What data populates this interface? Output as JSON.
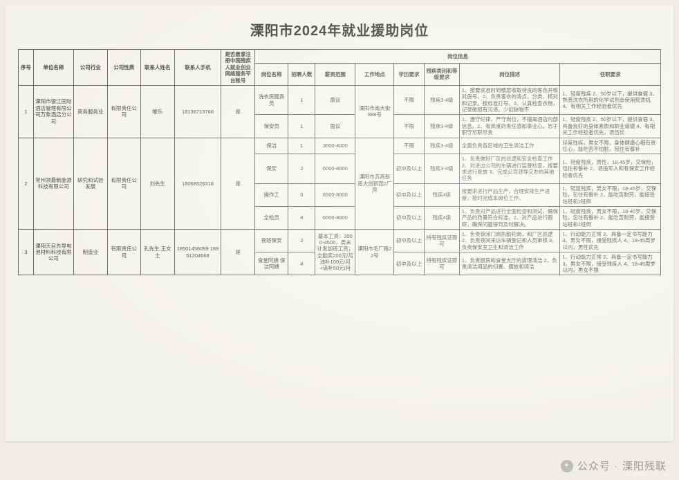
{
  "title": "溧阳市2024年就业援助岗位",
  "watermark": {
    "prefix": "公众号 · ",
    "name": "溧阳残联"
  },
  "colors": {
    "page_bg": "#faf8f3",
    "border": "#555555",
    "text": "#333333"
  },
  "fonts": {
    "title_pt": 20,
    "body_pt": 7.5
  },
  "header": {
    "seq": "序号",
    "company": "单位名称",
    "industry": "公司行业",
    "nature": "公司性质",
    "contact": "联系人姓名",
    "phone": "联系人手机",
    "registered": "是否愿意注册中国残疾人就业创业网络服务平台账号",
    "job_info": "岗位信息",
    "sub": {
      "job_name": "岗位名称",
      "count": "招聘人数",
      "salary": "薪资范围",
      "location": "工作地点",
      "edu": "学历要求",
      "disab": "残疾类别和等级要求",
      "desc": "岗位描述",
      "req": "任职要求"
    }
  },
  "rows": [
    {
      "seq": "1",
      "company": "溧阳市银江国际酒店管理有限公司万象酒店分公司",
      "industry": "商务服务业",
      "nature": "有限责任公司",
      "contact": "喻乐",
      "phone": "18136713766",
      "registered": "是",
      "location": "溧阳市南大街 888号",
      "jobs": [
        {
          "name": "洗衣房服务员",
          "count": "1",
          "salary": "面议",
          "edu": "不限",
          "disab": "残疾3-4级",
          "desc": "1、按要求准时到楼层收取待洗的客衣并核对房号。2、负责客衣的清点、分类、核对和记录。按标准打号。3、认真检查衣物，记录破损有污渍。少扣缺物不",
          "req": "1、轻度残疾  2、50岁以下，提供食宿  3、熟悉洗衣所用的化学试剂会使用熨烫机  4、有相关工作经验者优先"
        },
        {
          "name": "保安员",
          "count": "1",
          "salary": "面议",
          "edu": "不限",
          "disab": "残疾3-4级",
          "desc": "1、遵守纪律，严守岗位，不擅离酒店内部信息。2、有高度的责任感和事业心。忠于职守尽职尽责",
          "req": "1、轻度残疾  2、50岁以下，提供食宿  3、具备良好的身体素质和职业道德  4、有相关工作经验者优先，退伍优"
        }
      ]
    },
    {
      "seq": "2",
      "company": "常州领最新能源科技有限公司",
      "industry": "研究和试验发展",
      "nature": "有限责任公司",
      "contact": "刘先生",
      "phone": "18068526318",
      "registered": "是",
      "location": "溧阳市苏高新南大创新园2厂房",
      "jobs": [
        {
          "name": "保洁",
          "count": "1",
          "salary": "3000-4000",
          "edu": "不限",
          "disab": "残疾3-4级",
          "desc": "全面负责各区域的卫生清洁工作",
          "req": "轻度残疾，男女不限，身体健康心细有责任心，能吃苦不怕脏，包住有餐补"
        },
        {
          "name": "保安",
          "count": "2",
          "salary": "6000-8000",
          "edu": "初中及以上",
          "disab": "残疾3-4级",
          "desc": "1、负责做好厂区的巡逻和安全检查工作  2、对进出公司的车辆进行监督检查，按要求进行登放  3、完成公司领导交办的其他任务",
          "req": "1、轻度残疾，男性，18-45岁，交保险，包住有餐补  2、退役军人和有保安工作经验者优先"
        },
        {
          "name": "操作工",
          "count": "3",
          "salary": "6500-8000",
          "edu": "初中及以上",
          "disab": "残疾4级",
          "desc": "按要求进行产品生产，合理安排生产进度，按时完成本岗位工作。",
          "req": "1、轻度残疾，男女不限，18-45岁，交保险，包住有餐补  2、能吃苦耐劳，能接受站班和2班倒"
        },
        {
          "name": "全检员",
          "count": "4",
          "salary": "6000-8000",
          "edu": "初中及以上",
          "disab": "残疾4级",
          "desc": "1、负责对产品进行全面检查和测试，确保产品的质量符合标准。2、对产品进行跟踪，确保问题得到及时解决。",
          "req": "1、轻度残疾，男女不限，18-40岁，交保险，包住有餐补  2、能吃苦耐劳，能接受站班和2班倒"
        }
      ]
    },
    {
      "seq": "3",
      "company": "溧阳天目先导电池材料科技有限公司",
      "industry": "制造业",
      "nature": "有限责任公司",
      "contact": "孔先生 王女士",
      "phone": "18501456099 18951204668",
      "registered": "是",
      "location": "溧阳市毛厂路22号",
      "jobs": [
        {
          "name": "夜班保安",
          "count": "2",
          "salary": "基本工资：3500-4500，周末计发加班工资；全勤奖200元/月 油补100元/月+话补50元/月",
          "edu": "初中及以上",
          "disab": "持有残疾证即可",
          "desc": "1、负责夜间门岗执勤轮岗，和厂区巡逻  2、负责夜间来访车辆登记和人员审核  3、负责保安室卫生和清洁工作",
          "req": "1、行动能力正常  2、具备一定书写能力  3、男女不限，接受残疾人  4、18-45周岁以内，男性优先"
        },
        {
          "name": "食堂阿姨 保洁阿姨",
          "count": "4",
          "salary": "",
          "edu": "初中及以上",
          "disab": "持有残疾证即可",
          "desc": "1、负责厨房和食堂大厅的清理清洁  2、负责清洁用品的归置、摆放和清洁",
          "req": "1、行动能力正常  2、具备一定书写能力  3、男女不限，接受残疾人  4、18-45周岁以内，男女不限"
        }
      ]
    }
  ]
}
